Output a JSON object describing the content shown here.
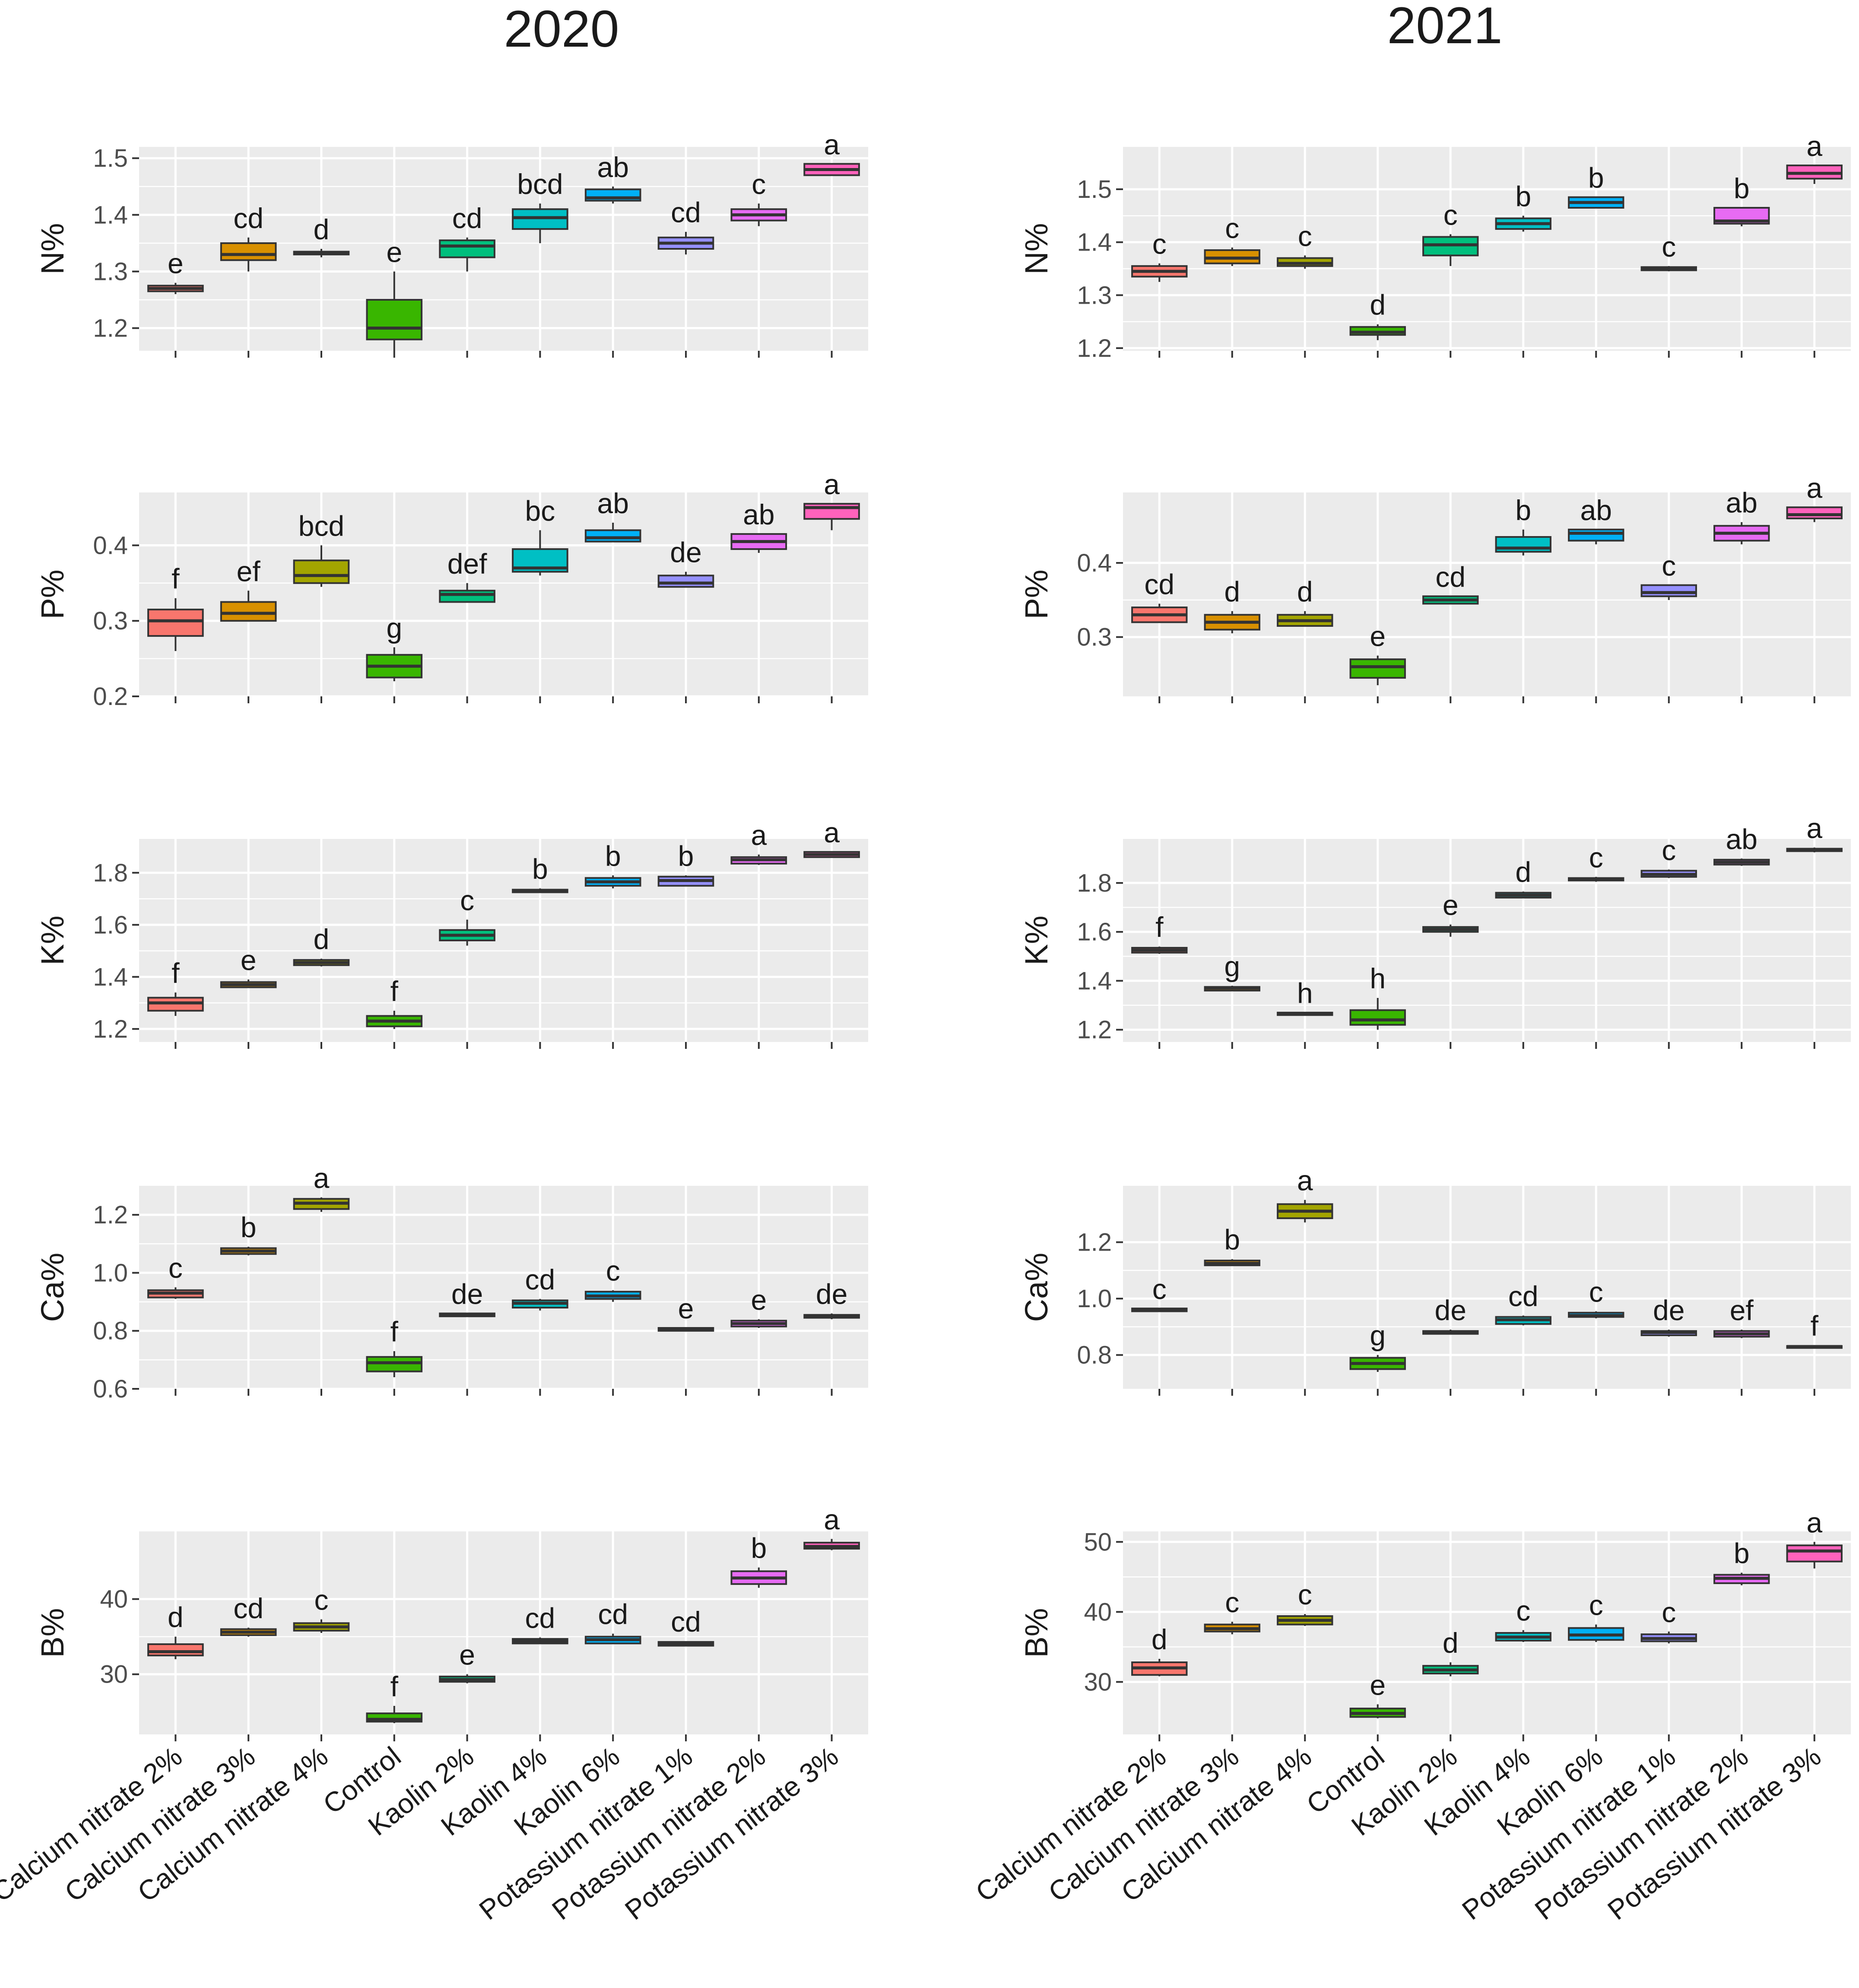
{
  "titles": [
    "2020",
    "2021"
  ],
  "chart_data": [
    {
      "type": "box",
      "year": "2020",
      "ylabel": "N%",
      "ylim": [
        1.16,
        1.52
      ],
      "yticks": [
        1.2,
        1.3,
        1.4,
        1.5
      ],
      "tick_labels": [
        "1.2",
        "1.3",
        "1.4",
        "1.5"
      ],
      "boxes": [
        [
          1.26,
          1.265,
          1.27,
          1.275,
          1.28
        ],
        [
          1.3,
          1.32,
          1.33,
          1.35,
          1.36
        ],
        [
          1.325,
          1.33,
          1.333,
          1.335,
          1.34
        ],
        [
          1.16,
          1.18,
          1.2,
          1.25,
          1.3
        ],
        [
          1.3,
          1.325,
          1.345,
          1.355,
          1.36
        ],
        [
          1.35,
          1.375,
          1.395,
          1.41,
          1.42
        ],
        [
          1.42,
          1.425,
          1.43,
          1.445,
          1.45
        ],
        [
          1.33,
          1.34,
          1.35,
          1.36,
          1.37
        ],
        [
          1.38,
          1.39,
          1.4,
          1.41,
          1.42
        ],
        [
          1.47,
          1.47,
          1.48,
          1.49,
          1.49
        ]
      ],
      "letters": [
        "e",
        "cd",
        "d",
        "e",
        "cd",
        "bcd",
        "ab",
        "cd",
        "c",
        "a"
      ]
    },
    {
      "type": "box",
      "year": "2020",
      "ylabel": "P%",
      "ylim": [
        0.2,
        0.47
      ],
      "yticks": [
        0.2,
        0.3,
        0.4
      ],
      "tick_labels": [
        "0.2",
        "0.3",
        "0.4"
      ],
      "boxes": [
        [
          0.26,
          0.28,
          0.3,
          0.315,
          0.33
        ],
        [
          0.3,
          0.3,
          0.31,
          0.325,
          0.34
        ],
        [
          0.345,
          0.35,
          0.36,
          0.38,
          0.4
        ],
        [
          0.22,
          0.225,
          0.24,
          0.255,
          0.265
        ],
        [
          0.325,
          0.325,
          0.335,
          0.34,
          0.35
        ],
        [
          0.36,
          0.365,
          0.37,
          0.395,
          0.42
        ],
        [
          0.405,
          0.405,
          0.41,
          0.42,
          0.43
        ],
        [
          0.345,
          0.345,
          0.35,
          0.36,
          0.365
        ],
        [
          0.39,
          0.395,
          0.405,
          0.415,
          0.415
        ],
        [
          0.42,
          0.435,
          0.45,
          0.455,
          0.455
        ]
      ],
      "letters": [
        "f",
        "ef",
        "bcd",
        "g",
        "def",
        "bc",
        "ab",
        "de",
        "ab",
        "a"
      ]
    },
    {
      "type": "box",
      "year": "2020",
      "ylabel": "K%",
      "ylim": [
        1.15,
        1.93
      ],
      "yticks": [
        1.2,
        1.4,
        1.6,
        1.8
      ],
      "tick_labels": [
        "1.2",
        "1.4",
        "1.6",
        "1.8"
      ],
      "boxes": [
        [
          1.25,
          1.27,
          1.3,
          1.32,
          1.34
        ],
        [
          1.36,
          1.36,
          1.37,
          1.38,
          1.39
        ],
        [
          1.44,
          1.445,
          1.455,
          1.465,
          1.47
        ],
        [
          1.2,
          1.21,
          1.23,
          1.25,
          1.27
        ],
        [
          1.52,
          1.54,
          1.56,
          1.58,
          1.62
        ],
        [
          1.725,
          1.725,
          1.73,
          1.735,
          1.74
        ],
        [
          1.74,
          1.75,
          1.765,
          1.78,
          1.79
        ],
        [
          1.75,
          1.75,
          1.77,
          1.785,
          1.79
        ],
        [
          1.83,
          1.835,
          1.85,
          1.86,
          1.87
        ],
        [
          1.86,
          1.86,
          1.87,
          1.88,
          1.88
        ]
      ],
      "letters": [
        "f",
        "e",
        "d",
        "f",
        "c",
        "b",
        "b",
        "b",
        "a",
        "a"
      ]
    },
    {
      "type": "box",
      "year": "2020",
      "ylabel": "Ca%",
      "ylim": [
        0.6,
        1.3
      ],
      "yticks": [
        0.6,
        0.8,
        1.0,
        1.2
      ],
      "tick_labels": [
        "0.6",
        "0.8",
        "1.0",
        "1.2"
      ],
      "boxes": [
        [
          0.91,
          0.915,
          0.93,
          0.94,
          0.95
        ],
        [
          1.06,
          1.065,
          1.075,
          1.085,
          1.09
        ],
        [
          1.21,
          1.22,
          1.24,
          1.255,
          1.26
        ],
        [
          0.64,
          0.66,
          0.69,
          0.71,
          0.73
        ],
        [
          0.85,
          0.85,
          0.855,
          0.86,
          0.86
        ],
        [
          0.87,
          0.88,
          0.895,
          0.905,
          0.91
        ],
        [
          0.9,
          0.91,
          0.92,
          0.935,
          0.94
        ],
        [
          0.8,
          0.8,
          0.805,
          0.81,
          0.81
        ],
        [
          0.81,
          0.815,
          0.825,
          0.835,
          0.84
        ],
        [
          0.84,
          0.845,
          0.85,
          0.855,
          0.86
        ]
      ],
      "letters": [
        "c",
        "b",
        "a",
        "f",
        "de",
        "cd",
        "c",
        "e",
        "e",
        "de"
      ]
    },
    {
      "type": "box",
      "year": "2020",
      "ylabel": "B%",
      "ylim": [
        22,
        49
      ],
      "yticks": [
        30,
        40
      ],
      "tick_labels": [
        "30",
        "40"
      ],
      "boxes": [
        [
          32,
          32.5,
          33,
          34,
          35
        ],
        [
          35,
          35.2,
          35.6,
          36,
          36.2
        ],
        [
          35.5,
          35.8,
          36.3,
          36.8,
          37.3
        ],
        [
          23.5,
          23.7,
          24,
          24.8,
          25.8
        ],
        [
          28.8,
          29,
          29.3,
          29.7,
          30
        ],
        [
          34,
          34.1,
          34.4,
          34.7,
          34.9
        ],
        [
          34,
          34.1,
          34.6,
          35,
          35.4
        ],
        [
          33.7,
          33.8,
          34,
          34.3,
          34.4
        ],
        [
          41.5,
          42,
          42.8,
          43.7,
          44.2
        ],
        [
          46.5,
          46.7,
          47,
          47.5,
          48
        ]
      ],
      "letters": [
        "d",
        "cd",
        "c",
        "f",
        "e",
        "cd",
        "cd",
        "cd",
        "b",
        "a"
      ]
    },
    {
      "type": "box",
      "year": "2021",
      "ylabel": "N%",
      "ylim": [
        1.195,
        1.58
      ],
      "yticks": [
        1.2,
        1.3,
        1.4,
        1.5
      ],
      "tick_labels": [
        "1.2",
        "1.3",
        "1.4",
        "1.5"
      ],
      "boxes": [
        [
          1.325,
          1.335,
          1.345,
          1.355,
          1.36
        ],
        [
          1.355,
          1.36,
          1.37,
          1.385,
          1.39
        ],
        [
          1.35,
          1.355,
          1.36,
          1.37,
          1.375
        ],
        [
          1.215,
          1.225,
          1.23,
          1.24,
          1.245
        ],
        [
          1.355,
          1.375,
          1.395,
          1.41,
          1.415
        ],
        [
          1.42,
          1.425,
          1.435,
          1.445,
          1.45
        ],
        [
          1.465,
          1.465,
          1.475,
          1.485,
          1.485
        ],
        [
          1.345,
          1.347,
          1.35,
          1.353,
          1.355
        ],
        [
          1.43,
          1.435,
          1.44,
          1.465,
          1.465
        ],
        [
          1.51,
          1.52,
          1.53,
          1.545,
          1.545
        ]
      ],
      "letters": [
        "c",
        "c",
        "c",
        "d",
        "c",
        "b",
        "b",
        "c",
        "b",
        "a"
      ]
    },
    {
      "type": "box",
      "year": "2021",
      "ylabel": "P%",
      "ylim": [
        0.22,
        0.495
      ],
      "yticks": [
        0.3,
        0.4
      ],
      "tick_labels": [
        "0.3",
        "0.4"
      ],
      "boxes": [
        [
          0.32,
          0.32,
          0.33,
          0.34,
          0.345
        ],
        [
          0.305,
          0.31,
          0.32,
          0.33,
          0.335
        ],
        [
          0.315,
          0.315,
          0.322,
          0.33,
          0.335
        ],
        [
          0.235,
          0.245,
          0.26,
          0.27,
          0.275
        ],
        [
          0.345,
          0.345,
          0.35,
          0.355,
          0.355
        ],
        [
          0.41,
          0.415,
          0.42,
          0.435,
          0.445
        ],
        [
          0.425,
          0.43,
          0.44,
          0.445,
          0.445
        ],
        [
          0.35,
          0.355,
          0.36,
          0.37,
          0.37
        ],
        [
          0.425,
          0.43,
          0.44,
          0.45,
          0.455
        ],
        [
          0.455,
          0.46,
          0.465,
          0.475,
          0.475
        ]
      ],
      "letters": [
        "cd",
        "d",
        "d",
        "e",
        "cd",
        "b",
        "ab",
        "c",
        "ab",
        "a"
      ]
    },
    {
      "type": "box",
      "year": "2021",
      "ylabel": "K%",
      "ylim": [
        1.15,
        1.98
      ],
      "yticks": [
        1.2,
        1.4,
        1.6,
        1.8
      ],
      "tick_labels": [
        "1.2",
        "1.4",
        "1.6",
        "1.8"
      ],
      "boxes": [
        [
          1.51,
          1.515,
          1.525,
          1.535,
          1.54
        ],
        [
          1.36,
          1.36,
          1.37,
          1.375,
          1.38
        ],
        [
          1.26,
          1.26,
          1.265,
          1.27,
          1.27
        ],
        [
          1.2,
          1.22,
          1.24,
          1.28,
          1.33
        ],
        [
          1.58,
          1.6,
          1.61,
          1.62,
          1.63
        ],
        [
          1.74,
          1.74,
          1.75,
          1.76,
          1.765
        ],
        [
          1.805,
          1.81,
          1.815,
          1.82,
          1.825
        ],
        [
          1.82,
          1.825,
          1.835,
          1.85,
          1.855
        ],
        [
          1.87,
          1.875,
          1.885,
          1.895,
          1.9
        ],
        [
          1.925,
          1.93,
          1.935,
          1.94,
          1.945
        ]
      ],
      "letters": [
        "f",
        "g",
        "h",
        "h",
        "e",
        "d",
        "c",
        "c",
        "ab",
        "a"
      ]
    },
    {
      "type": "box",
      "year": "2021",
      "ylabel": "Ca%",
      "ylim": [
        0.68,
        1.4
      ],
      "yticks": [
        0.8,
        1.0,
        1.2
      ],
      "tick_labels": [
        "0.8",
        "1.0",
        "1.2"
      ],
      "boxes": [
        [
          0.955,
          0.955,
          0.96,
          0.965,
          0.965
        ],
        [
          1.115,
          1.118,
          1.125,
          1.135,
          1.14
        ],
        [
          1.27,
          1.285,
          1.31,
          1.335,
          1.35
        ],
        [
          0.74,
          0.75,
          0.77,
          0.79,
          0.8
        ],
        [
          0.875,
          0.875,
          0.88,
          0.885,
          0.89
        ],
        [
          0.905,
          0.91,
          0.925,
          0.935,
          0.94
        ],
        [
          0.93,
          0.935,
          0.94,
          0.95,
          0.955
        ],
        [
          0.865,
          0.87,
          0.88,
          0.885,
          0.89
        ],
        [
          0.86,
          0.865,
          0.875,
          0.885,
          0.89
        ],
        [
          0.825,
          0.825,
          0.83,
          0.832,
          0.835
        ]
      ],
      "letters": [
        "c",
        "b",
        "a",
        "g",
        "de",
        "cd",
        "c",
        "de",
        "ef",
        "f"
      ]
    },
    {
      "type": "box",
      "year": "2021",
      "ylabel": "B%",
      "ylim": [
        22.5,
        51.5
      ],
      "yticks": [
        30,
        40,
        50
      ],
      "tick_labels": [
        "30",
        "40",
        "50"
      ],
      "boxes": [
        [
          30.8,
          31,
          32,
          32.8,
          33.3
        ],
        [
          36.8,
          37.2,
          37.6,
          38.2,
          38.6
        ],
        [
          38,
          38.2,
          38.8,
          39.4,
          39.7
        ],
        [
          24.8,
          25,
          25.5,
          26.2,
          26.8
        ],
        [
          30.8,
          31.2,
          31.7,
          32.3,
          32.8
        ],
        [
          35.7,
          35.9,
          36.4,
          37,
          37.4
        ],
        [
          35.7,
          36,
          36.7,
          37.7,
          38.2
        ],
        [
          35.5,
          35.8,
          36.2,
          36.8,
          37.2
        ],
        [
          43.8,
          44.1,
          44.8,
          45.3,
          45.6
        ],
        [
          46.2,
          47.2,
          48.7,
          49.5,
          50
        ]
      ],
      "letters": [
        "d",
        "c",
        "c",
        "e",
        "d",
        "c",
        "c",
        "c",
        "b",
        "a"
      ]
    }
  ],
  "categories": [
    "Calcium nitrate 2%",
    "Calcium nitrate 3%",
    "Calcium nitrate 4%",
    "Control",
    "Kaolin 2%",
    "Kaolin 4%",
    "Kaolin 6%",
    "Potassium nitrate 1%",
    "Potassium nitrate 2%",
    "Potassium nitrate 3%"
  ],
  "colors": [
    "#F8766D",
    "#D89000",
    "#A3A500",
    "#39B600",
    "#00BF7D",
    "#00BFC4",
    "#00B0F6",
    "#9590FF",
    "#E76BF3",
    "#FF62BC"
  ]
}
